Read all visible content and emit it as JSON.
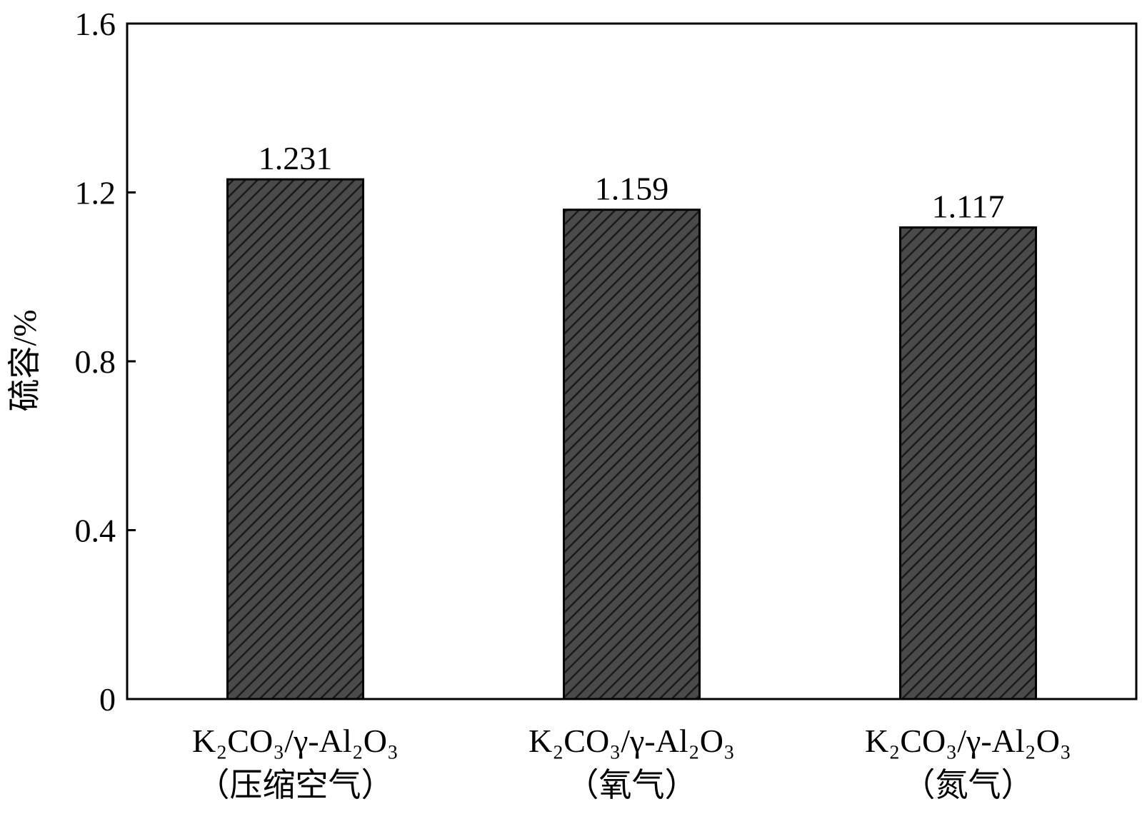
{
  "chart_data": {
    "type": "bar",
    "ylabel": "硫容/%",
    "xlabel": "",
    "ylim": [
      0,
      1.6
    ],
    "yticks": [
      "0",
      "0.4",
      "0.8",
      "1.2",
      "1.6"
    ],
    "ytick_values": [
      0,
      0.4,
      0.8,
      1.2,
      1.6
    ],
    "categories": [
      {
        "formula": "K₂CO₃/γ-Al₂O₃",
        "condition": "（压缩空气）"
      },
      {
        "formula": "K₂CO₃/γ-Al₂O₃",
        "condition": "（氧气）"
      },
      {
        "formula": "K₂CO₃/γ-Al₂O₃",
        "condition": "（氮气）"
      }
    ],
    "values": [
      1.231,
      1.159,
      1.117
    ],
    "data_labels": [
      "1.231",
      "1.159",
      "1.117"
    ],
    "bar_fill": "#404040",
    "bar_pattern": "diagonal-hatch",
    "grid": false,
    "legend": "none"
  }
}
